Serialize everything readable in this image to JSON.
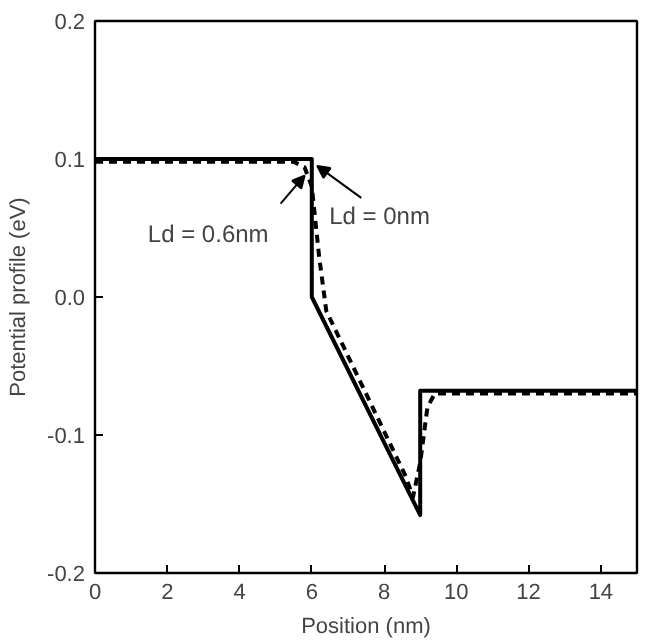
{
  "chart_data": {
    "type": "line",
    "xlabel": "Position (nm)",
    "ylabel": "Potential profile (eV)",
    "xlim": [
      0,
      15
    ],
    "xticks": [
      0,
      2,
      4,
      6,
      8,
      10,
      12,
      14
    ],
    "ylim": [
      -0.2,
      0.2
    ],
    "yticks": [
      {
        "value": -0.2,
        "label": "-0.2"
      },
      {
        "value": -0.1,
        "label": "-0.1"
      },
      {
        "value": 0.0,
        "label": "0.0"
      },
      {
        "value": 0.1,
        "label": "0.1"
      },
      {
        "value": 0.2,
        "label": "0.2"
      }
    ],
    "grid": false,
    "marker": "none",
    "series": [
      {
        "color": "#000000",
        "line_style": "solid",
        "x": [
          0,
          6,
          6,
          9,
          9,
          15
        ],
        "values": [
          0.1,
          0.1,
          0.0,
          -0.158,
          -0.068,
          -0.068
        ]
      },
      {
        "color": "#000000",
        "line_style": "dashed",
        "x": [
          0,
          5.5,
          5.8,
          6.0,
          6.2,
          6.4,
          8.6,
          8.8,
          9.0,
          9.2,
          9.4,
          15
        ],
        "values": [
          0.098,
          0.098,
          0.094,
          0.08,
          0.03,
          -0.01,
          -0.13,
          -0.145,
          -0.12,
          -0.08,
          -0.07,
          -0.07
        ]
      }
    ],
    "annotations": [
      {
        "text": "Ld = 0.6nm",
        "x": 5.8,
        "y": 0.088
      },
      {
        "text": "Ld = 0nm",
        "x": 6.15,
        "y": 0.095
      }
    ]
  }
}
